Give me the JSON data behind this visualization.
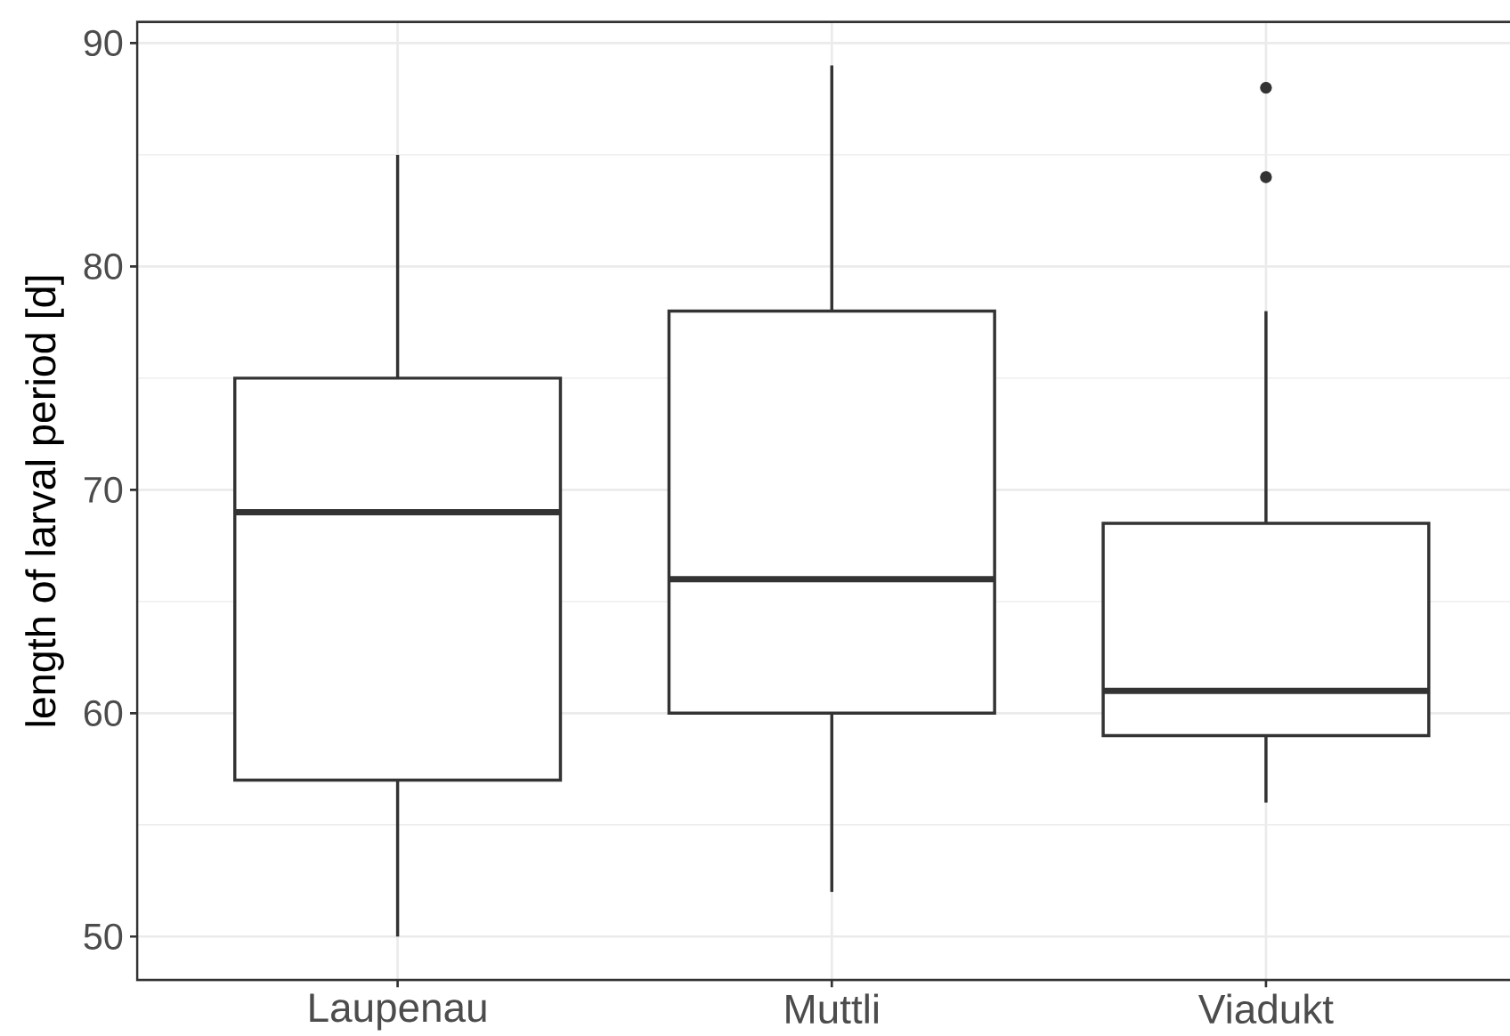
{
  "chart_data": {
    "type": "box",
    "ylabel": "length of larval period [d]",
    "categories": [
      "Laupenau",
      "Muttli",
      "Viadukt"
    ],
    "boxes": [
      {
        "low": 50,
        "q1": 57,
        "median": 69,
        "q3": 75,
        "high": 85
      },
      {
        "low": 52,
        "q1": 60,
        "median": 66,
        "q3": 78,
        "high": 89
      },
      {
        "low": 56,
        "q1": 59,
        "median": 61,
        "q3": 68.5,
        "high": 78,
        "outliers": [
          84,
          88
        ]
      }
    ],
    "color": "#333333",
    "ylim": [
      48.05,
      90.95
    ],
    "yticks": [
      50,
      60,
      70,
      80,
      90
    ],
    "grid": true
  }
}
